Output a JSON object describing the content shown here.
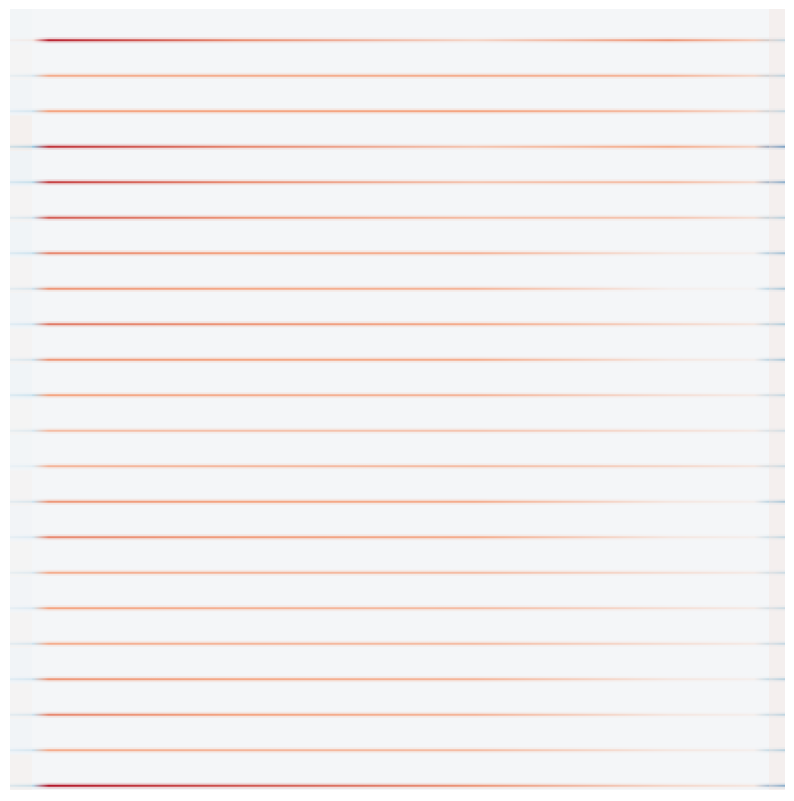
{
  "chart_data": {
    "type": "heatmap",
    "title": "",
    "xlabel": "",
    "ylabel": "",
    "colormap": "diverging-red-blue",
    "colors": {
      "neutral": "#f4f6f8",
      "positive_strong": "#b2182b",
      "positive_light": "#f4a582",
      "negative_strong": "#2166ac",
      "negative_light": "#92c5de"
    },
    "value_range": [
      -1,
      1
    ],
    "grid": false,
    "legend": "none",
    "axes_visible": false,
    "bands": [
      {
        "band": 1,
        "start": 0.95,
        "peak": 0.2,
        "end": 0.55,
        "edge_left": 0.1,
        "edge_right": -0.35
      },
      {
        "band": 2,
        "start": 0.45,
        "peak": 0.45,
        "end": 0.4,
        "edge_left": -0.15,
        "edge_right": -0.4
      },
      {
        "band": 3,
        "start": 0.5,
        "peak": 0.5,
        "end": 0.35,
        "edge_left": -0.2,
        "edge_right": -0.35
      },
      {
        "band": 4,
        "start": 0.9,
        "peak": 0.3,
        "end": 0.45,
        "edge_left": -0.45,
        "edge_right": -0.85
      },
      {
        "band": 5,
        "start": 0.85,
        "peak": 0.3,
        "end": 0.35,
        "edge_left": -0.3,
        "edge_right": -0.75
      },
      {
        "band": 6,
        "start": 0.75,
        "peak": 0.35,
        "end": 0.3,
        "edge_left": -0.2,
        "edge_right": -0.45
      },
      {
        "band": 7,
        "start": 0.6,
        "peak": 0.4,
        "end": 0.1,
        "edge_left": -0.25,
        "edge_right": -0.6
      },
      {
        "band": 8,
        "start": 0.55,
        "peak": 0.4,
        "end": 0.05,
        "edge_left": -0.2,
        "edge_right": -0.55
      },
      {
        "band": 9,
        "start": 0.65,
        "peak": 0.45,
        "end": 0.2,
        "edge_left": -0.2,
        "edge_right": -0.5
      },
      {
        "band": 10,
        "start": 0.55,
        "peak": 0.45,
        "end": 0.1,
        "edge_left": -0.2,
        "edge_right": -0.55
      },
      {
        "band": 11,
        "start": 0.5,
        "peak": 0.4,
        "end": 0.15,
        "edge_left": -0.25,
        "edge_right": -0.35
      },
      {
        "band": 12,
        "start": 0.35,
        "peak": 0.3,
        "end": 0.15,
        "edge_left": -0.15,
        "edge_right": -0.25
      },
      {
        "band": 13,
        "start": 0.4,
        "peak": 0.35,
        "end": 0.2,
        "edge_left": -0.1,
        "edge_right": -0.3
      },
      {
        "band": 14,
        "start": 0.55,
        "peak": 0.45,
        "end": 0.1,
        "edge_left": -0.2,
        "edge_right": -0.55
      },
      {
        "band": 15,
        "start": 0.6,
        "peak": 0.45,
        "end": 0.1,
        "edge_left": -0.15,
        "edge_right": -0.35
      },
      {
        "band": 16,
        "start": 0.45,
        "peak": 0.35,
        "end": 0.15,
        "edge_left": -0.15,
        "edge_right": -0.3
      },
      {
        "band": 17,
        "start": 0.5,
        "peak": 0.35,
        "end": 0.15,
        "edge_left": -0.15,
        "edge_right": -0.3
      },
      {
        "band": 18,
        "start": 0.45,
        "peak": 0.35,
        "end": 0.15,
        "edge_left": -0.2,
        "edge_right": -0.35
      },
      {
        "band": 19,
        "start": 0.55,
        "peak": 0.4,
        "end": 0.1,
        "edge_left": -0.2,
        "edge_right": -0.45
      },
      {
        "band": 20,
        "start": 0.6,
        "peak": 0.4,
        "end": 0.1,
        "edge_left": -0.2,
        "edge_right": -0.4
      },
      {
        "band": 21,
        "start": 0.45,
        "peak": 0.35,
        "end": 0.1,
        "edge_left": -0.2,
        "edge_right": -0.45
      },
      {
        "band": 22,
        "start": 1.0,
        "peak": 0.55,
        "end": 0.2,
        "edge_left": -0.3,
        "edge_right": -0.75
      }
    ]
  }
}
